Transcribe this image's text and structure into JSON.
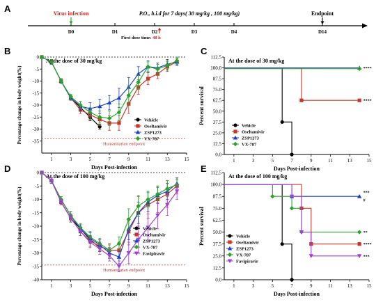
{
  "timeline": {
    "panel_letter": "A",
    "days": [
      "D0",
      "D1",
      "D2",
      "D3",
      "D4",
      "D14"
    ],
    "virus_label": "Virus infection",
    "treatment_label": "P.O., b.i.d for 7 days( 30 mg/kg , 100 mg/kg)",
    "endpoint_label": "Endpoint",
    "first_dose_label": "First dose time:",
    "first_dose_value": "48 h"
  },
  "colors": {
    "vehicle": "#000000",
    "oseltamivir": "#c0392b",
    "zsp1273": "#1f3fbf",
    "vx787": "#2ca02c",
    "favipiravir": "#a040d0",
    "endpoint_line": "#d9534f"
  },
  "chart_data": [
    {
      "id": "B",
      "type": "line",
      "panel_letter": "B",
      "title": "At the dose of 30 mg/kg",
      "xlabel": "Days Post-infection",
      "ylabel": "Percentage change in body weight(%)",
      "xlim": [
        0,
        15
      ],
      "ylim": [
        -40,
        0
      ],
      "xticks": [
        1,
        3,
        5,
        7,
        9,
        11,
        13,
        15
      ],
      "yticks": [
        0,
        -5,
        -10,
        -15,
        -20,
        -25,
        -30,
        -35
      ],
      "reference_line": {
        "y": -34,
        "label": "Humanitarian endpoint"
      },
      "series": [
        {
          "name": "Vehicle",
          "color": "#000000",
          "marker": "circle",
          "x": [
            0,
            1,
            2,
            3,
            4,
            5,
            6
          ],
          "y": [
            0,
            -2,
            -10,
            -17,
            -21,
            -25,
            -29
          ],
          "err": [
            0.5,
            0.8,
            1,
            1,
            1,
            1.5,
            1
          ]
        },
        {
          "name": "Oseltamivir",
          "color": "#c0392b",
          "marker": "square",
          "x": [
            0,
            1,
            2,
            3,
            4,
            5,
            6,
            7,
            8,
            9,
            10,
            11,
            12,
            13,
            14
          ],
          "y": [
            0,
            -2,
            -10,
            -17,
            -22,
            -24,
            -26,
            -27.5,
            -27.5,
            -19.5,
            -12.5,
            -9,
            -7,
            -4,
            -2
          ],
          "err": [
            0.5,
            1,
            1,
            1,
            1.5,
            2,
            2.5,
            3,
            3,
            4,
            3,
            2.5,
            2,
            2,
            1.5
          ]
        },
        {
          "name": "ZSP1273",
          "color": "#1f3fbf",
          "marker": "triangle",
          "x": [
            0,
            1,
            2,
            3,
            4,
            5,
            6,
            7,
            8,
            9,
            10,
            11,
            12,
            13,
            14
          ],
          "y": [
            0,
            -2,
            -10,
            -17,
            -20.5,
            -21.5,
            -20.5,
            -19,
            -17,
            -12.5,
            -7,
            -4,
            -4.5,
            -3,
            -2
          ],
          "err": [
            0.5,
            1,
            1,
            1,
            2,
            2.5,
            3,
            3,
            4,
            4,
            3,
            2.5,
            2,
            2,
            1.5
          ]
        },
        {
          "name": "VX-787",
          "color": "#2ca02c",
          "marker": "diamond",
          "x": [
            0,
            1,
            2,
            3,
            4,
            5,
            6,
            7,
            8,
            9,
            10,
            11,
            12,
            13,
            14
          ],
          "y": [
            0,
            -2,
            -10,
            -16.5,
            -20,
            -23,
            -25,
            -25.5,
            -23,
            -16,
            -10.5,
            -4,
            -5,
            -3.5,
            -1.5
          ],
          "err": [
            0.5,
            1,
            1,
            1,
            1.5,
            2,
            2.5,
            3,
            3.5,
            4,
            3,
            2,
            2,
            2,
            1.5
          ]
        }
      ]
    },
    {
      "id": "C",
      "type": "line",
      "step": true,
      "panel_letter": "C",
      "title": "At the dose of 30 mg/kg",
      "xlabel": "Days Post-infection",
      "ylabel": "Percent survival",
      "xlim": [
        0,
        15
      ],
      "ylim": [
        0,
        112.5
      ],
      "xticks": [
        1,
        3,
        5,
        7,
        9,
        11,
        13,
        15
      ],
      "yticks": [
        0.0,
        12.5,
        25.0,
        37.5,
        50.0,
        62.5,
        75.0,
        87.5,
        100.0,
        112.5
      ],
      "series": [
        {
          "name": "Vehicle",
          "color": "#000000",
          "marker": "circle",
          "x": [
            0,
            6,
            7
          ],
          "y": [
            100,
            37.5,
            0
          ]
        },
        {
          "name": "Oseltamivir",
          "color": "#c0392b",
          "marker": "square",
          "x": [
            0,
            8,
            14
          ],
          "y": [
            100,
            62.5,
            62.5
          ]
        },
        {
          "name": "ZSP1273",
          "color": "#1f3fbf",
          "marker": "triangle",
          "x": [
            0,
            14
          ],
          "y": [
            100,
            100
          ]
        },
        {
          "name": "VX-787",
          "color": "#2ca02c",
          "marker": "diamond",
          "x": [
            0,
            14
          ],
          "y": [
            100,
            100
          ]
        }
      ],
      "annotations": [
        {
          "text": "****",
          "x": 14.4,
          "y": 100
        },
        {
          "text": "****",
          "x": 14.4,
          "y": 62.5
        }
      ]
    },
    {
      "id": "D",
      "type": "line",
      "panel_letter": "D",
      "title": "At the dose of 100 mg/kg",
      "xlabel": "Days Post-infection",
      "ylabel": "Percentage change in body weight(%)",
      "xlim": [
        0,
        15
      ],
      "ylim": [
        -40,
        0
      ],
      "xticks": [
        1,
        3,
        5,
        7,
        9,
        11,
        13,
        15
      ],
      "yticks": [
        0,
        -5,
        -10,
        -15,
        -20,
        -25,
        -30,
        -35,
        -40
      ],
      "reference_line": {
        "y": -34.5,
        "label": "Humanitarian endpoint"
      },
      "series": [
        {
          "name": "Vehicle",
          "color": "#000000",
          "marker": "circle",
          "x": [
            0,
            1,
            2,
            3,
            4,
            5,
            6
          ],
          "y": [
            0,
            -3,
            -11,
            -17,
            -21,
            -25,
            -28
          ],
          "err": [
            0.5,
            1,
            1,
            1,
            1.5,
            1.5,
            1.5
          ]
        },
        {
          "name": "Oseltamivir",
          "color": "#c0392b",
          "marker": "square",
          "x": [
            0,
            1,
            2,
            3,
            4,
            5,
            6,
            7,
            8,
            9,
            10,
            11,
            12,
            13,
            14
          ],
          "y": [
            0,
            -3,
            -11,
            -17,
            -22,
            -25.5,
            -27.5,
            -29,
            -29,
            -22,
            -15,
            -12,
            -10,
            -8,
            -5
          ],
          "err": [
            0.5,
            1,
            1,
            1.5,
            1.5,
            2,
            2,
            2.5,
            3,
            5,
            6,
            5,
            5,
            5,
            3
          ]
        },
        {
          "name": "ZSP1273",
          "color": "#1f3fbf",
          "marker": "triangle",
          "x": [
            0,
            1,
            2,
            3,
            4,
            5,
            6,
            7,
            8,
            9,
            10,
            11,
            12,
            13,
            14
          ],
          "y": [
            0,
            -3,
            -10,
            -16,
            -21,
            -24.5,
            -27,
            -30,
            -31.5,
            -21,
            -15,
            -11,
            -8.5,
            -7,
            -4
          ],
          "err": [
            0.5,
            1,
            1,
            1.5,
            1.5,
            2,
            2,
            2,
            2.5,
            4,
            4,
            3.5,
            3,
            3,
            2
          ]
        },
        {
          "name": "VX-787",
          "color": "#2ca02c",
          "marker": "diamond",
          "x": [
            0,
            1,
            2,
            3,
            4,
            5,
            6,
            7,
            8,
            9,
            10,
            11,
            12,
            13,
            14
          ],
          "y": [
            0,
            -3,
            -10,
            -16,
            -20.5,
            -24,
            -26.5,
            -29,
            -26.5,
            -17.5,
            -12.5,
            -10,
            -8,
            -6,
            -4.5
          ],
          "err": [
            0.5,
            1,
            1,
            1.5,
            1.5,
            2,
            2,
            2,
            2.5,
            4,
            4,
            3,
            3,
            3,
            2
          ]
        },
        {
          "name": "Favipiravir",
          "color": "#a040d0",
          "marker": "triangle-down",
          "x": [
            0,
            1,
            2,
            3,
            4,
            5,
            6,
            7,
            8,
            9,
            10,
            11,
            12,
            13,
            14
          ],
          "y": [
            0,
            -3,
            -11,
            -17,
            -22,
            -26,
            -28.5,
            -31,
            -35,
            -30,
            -25,
            -20.5,
            -16,
            -12,
            -7
          ],
          "err": [
            0.5,
            1,
            1,
            1.5,
            1.5,
            2,
            2,
            2,
            2,
            4,
            5,
            5,
            5,
            4,
            3
          ]
        }
      ]
    },
    {
      "id": "E",
      "type": "line",
      "step": true,
      "panel_letter": "E",
      "title": "At the dose of 100 mg/kg",
      "xlabel": "Days Post-infection",
      "ylabel": "Percent survival",
      "xlim": [
        0,
        15
      ],
      "ylim": [
        0,
        112.5
      ],
      "xticks": [
        1,
        3,
        5,
        7,
        9,
        11,
        13,
        15
      ],
      "yticks": [
        0.0,
        12.5,
        25.0,
        37.5,
        50.0,
        62.5,
        75.0,
        87.5,
        100.0,
        112.5
      ],
      "series": [
        {
          "name": "Vehicle",
          "color": "#000000",
          "marker": "circle",
          "x": [
            0,
            6,
            7
          ],
          "y": [
            100,
            37.5,
            0
          ]
        },
        {
          "name": "Oseltamivir",
          "color": "#c0392b",
          "marker": "square",
          "x": [
            0,
            8,
            9,
            14
          ],
          "y": [
            100,
            75,
            37.5,
            37.5
          ]
        },
        {
          "name": "ZSP1273",
          "color": "#1f3fbf",
          "marker": "triangle",
          "x": [
            0,
            7,
            14
          ],
          "y": [
            100,
            87.5,
            87.5
          ]
        },
        {
          "name": "VX-787",
          "color": "#2ca02c",
          "marker": "diamond",
          "x": [
            0,
            5,
            7,
            8,
            14
          ],
          "y": [
            100,
            87.5,
            75,
            50,
            50
          ]
        },
        {
          "name": "Favipiravir",
          "color": "#a040d0",
          "marker": "triangle-down",
          "x": [
            0,
            7,
            8,
            9,
            14
          ],
          "y": [
            100,
            87.5,
            50,
            25,
            25
          ]
        }
      ],
      "annotations": [
        {
          "text": "***",
          "x": 14.4,
          "y": 92
        },
        {
          "text": "#",
          "x": 14.4,
          "y": 84
        },
        {
          "text": "**",
          "x": 14.4,
          "y": 50
        },
        {
          "text": "****",
          "x": 14.4,
          "y": 37.5
        },
        {
          "text": "***",
          "x": 14.4,
          "y": 25
        }
      ]
    }
  ]
}
